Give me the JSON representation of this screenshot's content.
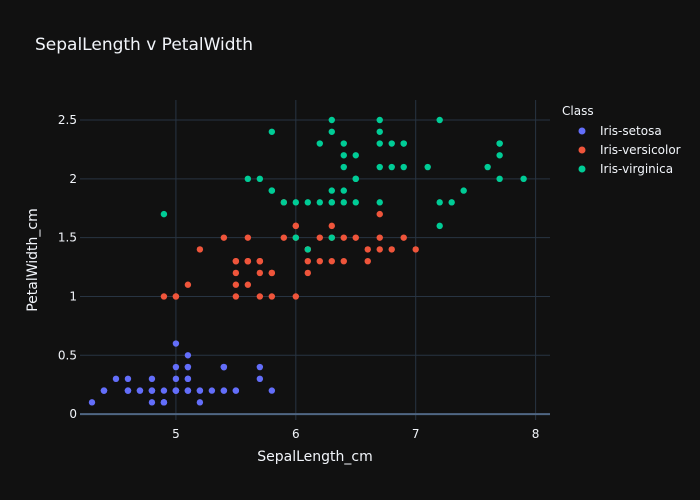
{
  "chart_data": {
    "type": "scatter",
    "title": "SepalLength v PetalWidth",
    "xlabel": "SepalLength_cm",
    "ylabel": "PetalWidth_cm",
    "xlim": [
      4.2,
      8.12
    ],
    "ylim": [
      -0.05,
      2.67
    ],
    "xticks": [
      5,
      6,
      7,
      8
    ],
    "yticks": [
      0,
      0.5,
      1,
      1.5,
      2,
      2.5
    ],
    "ytick_labels": [
      "0",
      "0.5",
      "1",
      "1.5",
      "2",
      "2.5"
    ],
    "grid": true,
    "legend": {
      "title": "Class",
      "position": "top-right"
    },
    "series": [
      {
        "name": "Iris-setosa",
        "color": "#636efa",
        "points": [
          [
            5.1,
            0.2
          ],
          [
            4.9,
            0.2
          ],
          [
            4.7,
            0.2
          ],
          [
            4.6,
            0.2
          ],
          [
            5.0,
            0.2
          ],
          [
            5.4,
            0.4
          ],
          [
            4.6,
            0.3
          ],
          [
            5.0,
            0.2
          ],
          [
            4.4,
            0.2
          ],
          [
            4.9,
            0.1
          ],
          [
            5.4,
            0.2
          ],
          [
            4.8,
            0.2
          ],
          [
            4.8,
            0.1
          ],
          [
            4.3,
            0.1
          ],
          [
            5.8,
            0.2
          ],
          [
            5.7,
            0.4
          ],
          [
            5.4,
            0.4
          ],
          [
            5.1,
            0.3
          ],
          [
            5.7,
            0.3
          ],
          [
            5.1,
            0.3
          ],
          [
            5.4,
            0.2
          ],
          [
            5.1,
            0.4
          ],
          [
            4.6,
            0.2
          ],
          [
            5.1,
            0.5
          ],
          [
            4.8,
            0.2
          ],
          [
            5.0,
            0.2
          ],
          [
            5.0,
            0.4
          ],
          [
            5.2,
            0.2
          ],
          [
            5.2,
            0.2
          ],
          [
            4.7,
            0.2
          ],
          [
            4.8,
            0.2
          ],
          [
            5.4,
            0.4
          ],
          [
            5.2,
            0.1
          ],
          [
            5.5,
            0.2
          ],
          [
            4.9,
            0.1
          ],
          [
            5.0,
            0.2
          ],
          [
            5.5,
            0.2
          ],
          [
            4.9,
            0.1
          ],
          [
            4.4,
            0.2
          ],
          [
            5.1,
            0.2
          ],
          [
            5.0,
            0.3
          ],
          [
            4.5,
            0.3
          ],
          [
            4.4,
            0.2
          ],
          [
            5.0,
            0.6
          ],
          [
            5.1,
            0.4
          ],
          [
            4.8,
            0.3
          ],
          [
            5.1,
            0.2
          ],
          [
            4.6,
            0.2
          ],
          [
            5.3,
            0.2
          ],
          [
            5.0,
            0.2
          ]
        ]
      },
      {
        "name": "Iris-versicolor",
        "color": "#ef553b",
        "points": [
          [
            7.0,
            1.4
          ],
          [
            6.4,
            1.5
          ],
          [
            6.9,
            1.5
          ],
          [
            5.5,
            1.3
          ],
          [
            6.5,
            1.5
          ],
          [
            5.7,
            1.3
          ],
          [
            6.3,
            1.6
          ],
          [
            4.9,
            1.0
          ],
          [
            6.6,
            1.3
          ],
          [
            5.2,
            1.4
          ],
          [
            5.0,
            1.0
          ],
          [
            5.9,
            1.5
          ],
          [
            6.0,
            1.0
          ],
          [
            6.1,
            1.4
          ],
          [
            5.6,
            1.3
          ],
          [
            6.7,
            1.4
          ],
          [
            5.6,
            1.5
          ],
          [
            5.8,
            1.0
          ],
          [
            6.2,
            1.5
          ],
          [
            5.6,
            1.1
          ],
          [
            5.9,
            1.8
          ],
          [
            6.1,
            1.3
          ],
          [
            6.3,
            1.5
          ],
          [
            6.1,
            1.2
          ],
          [
            6.4,
            1.3
          ],
          [
            6.6,
            1.4
          ],
          [
            6.8,
            1.4
          ],
          [
            6.7,
            1.7
          ],
          [
            6.0,
            1.5
          ],
          [
            5.7,
            1.0
          ],
          [
            5.5,
            1.1
          ],
          [
            5.5,
            1.0
          ],
          [
            5.8,
            1.2
          ],
          [
            6.0,
            1.6
          ],
          [
            5.4,
            1.5
          ],
          [
            6.0,
            1.6
          ],
          [
            6.7,
            1.5
          ],
          [
            6.3,
            1.3
          ],
          [
            5.6,
            1.3
          ],
          [
            5.5,
            1.3
          ],
          [
            5.5,
            1.2
          ],
          [
            6.1,
            1.4
          ],
          [
            5.8,
            1.2
          ],
          [
            5.0,
            1.0
          ],
          [
            5.6,
            1.3
          ],
          [
            5.7,
            1.2
          ],
          [
            5.7,
            1.3
          ],
          [
            6.2,
            1.3
          ],
          [
            5.1,
            1.1
          ],
          [
            5.7,
            1.3
          ]
        ]
      },
      {
        "name": "Iris-virginica",
        "color": "#00cc96",
        "points": [
          [
            6.3,
            2.5
          ],
          [
            5.8,
            1.9
          ],
          [
            7.1,
            2.1
          ],
          [
            6.3,
            1.8
          ],
          [
            6.5,
            2.2
          ],
          [
            7.6,
            2.1
          ],
          [
            4.9,
            1.7
          ],
          [
            7.3,
            1.8
          ],
          [
            6.7,
            1.8
          ],
          [
            7.2,
            2.5
          ],
          [
            6.5,
            2.0
          ],
          [
            6.4,
            1.9
          ],
          [
            6.8,
            2.1
          ],
          [
            5.7,
            2.0
          ],
          [
            5.8,
            2.4
          ],
          [
            6.4,
            2.3
          ],
          [
            6.5,
            1.8
          ],
          [
            7.7,
            2.2
          ],
          [
            7.7,
            2.3
          ],
          [
            6.0,
            1.5
          ],
          [
            6.9,
            2.3
          ],
          [
            5.6,
            2.0
          ],
          [
            7.7,
            2.0
          ],
          [
            6.3,
            1.8
          ],
          [
            6.7,
            2.1
          ],
          [
            7.2,
            1.8
          ],
          [
            6.2,
            1.8
          ],
          [
            6.1,
            1.8
          ],
          [
            6.4,
            2.1
          ],
          [
            7.2,
            1.6
          ],
          [
            7.4,
            1.9
          ],
          [
            7.9,
            2.0
          ],
          [
            6.4,
            2.2
          ],
          [
            6.3,
            1.5
          ],
          [
            6.1,
            1.4
          ],
          [
            7.7,
            2.3
          ],
          [
            6.3,
            2.4
          ],
          [
            6.4,
            1.8
          ],
          [
            6.0,
            1.8
          ],
          [
            6.9,
            2.1
          ],
          [
            6.7,
            2.4
          ],
          [
            6.9,
            2.3
          ],
          [
            5.8,
            1.9
          ],
          [
            6.8,
            2.3
          ],
          [
            6.7,
            2.5
          ],
          [
            6.7,
            2.3
          ],
          [
            6.3,
            1.9
          ],
          [
            6.5,
            2.0
          ],
          [
            6.2,
            2.3
          ],
          [
            5.9,
            1.8
          ]
        ]
      }
    ]
  }
}
